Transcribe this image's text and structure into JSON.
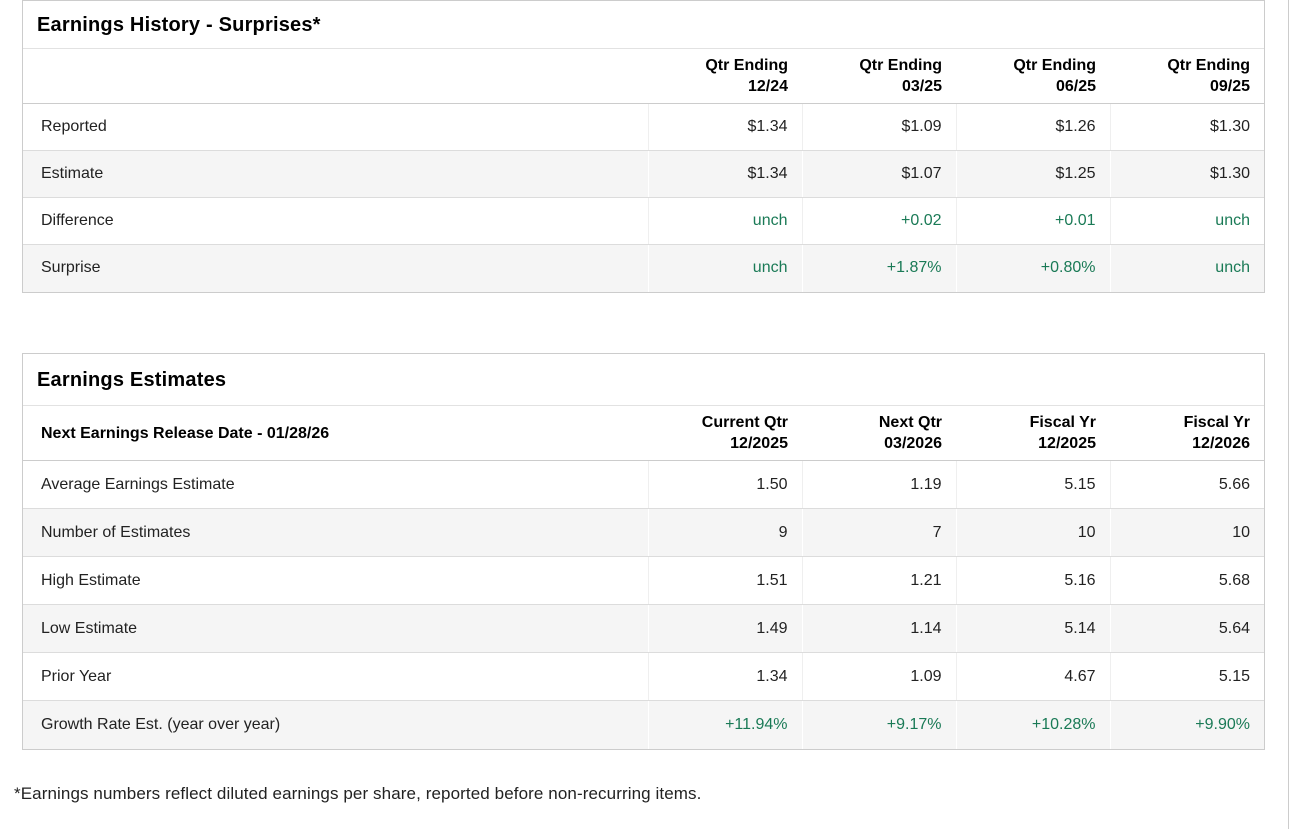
{
  "page": {
    "footnote": "*Earnings numbers reflect diluted earnings per share, reported before non-recurring items."
  },
  "colors": {
    "positive_value": "#1a7a56",
    "stripe_row": "#f5f5f5",
    "border": "#cccccc"
  },
  "earnings_history": {
    "title": "Earnings History - Surprises*",
    "columns": [
      {
        "line1": "Qtr Ending",
        "line2": "12/24"
      },
      {
        "line1": "Qtr Ending",
        "line2": "03/25"
      },
      {
        "line1": "Qtr Ending",
        "line2": "06/25"
      },
      {
        "line1": "Qtr Ending",
        "line2": "09/25"
      }
    ],
    "rows": [
      {
        "label": "Reported",
        "type": "normal",
        "values": [
          "$1.34",
          "$1.09",
          "$1.26",
          "$1.30"
        ]
      },
      {
        "label": "Estimate",
        "type": "normal",
        "values": [
          "$1.34",
          "$1.07",
          "$1.25",
          "$1.30"
        ]
      },
      {
        "label": "Difference",
        "type": "positive",
        "values": [
          "unch",
          "+0.02",
          "+0.01",
          "unch"
        ]
      },
      {
        "label": "Surprise",
        "type": "positive",
        "values": [
          "unch",
          "+1.87%",
          "+0.80%",
          "unch"
        ]
      }
    ]
  },
  "earnings_estimates": {
    "title": "Earnings Estimates",
    "release_date_label": "Next Earnings Release Date - 01/28/26",
    "columns": [
      {
        "line1": "Current Qtr",
        "line2": "12/2025"
      },
      {
        "line1": "Next Qtr",
        "line2": "03/2026"
      },
      {
        "line1": "Fiscal Yr",
        "line2": "12/2025"
      },
      {
        "line1": "Fiscal Yr",
        "line2": "12/2026"
      }
    ],
    "rows": [
      {
        "label": "Average Earnings Estimate",
        "type": "normal",
        "values": [
          "1.50",
          "1.19",
          "5.15",
          "5.66"
        ]
      },
      {
        "label": "Number of Estimates",
        "type": "normal",
        "values": [
          "9",
          "7",
          "10",
          "10"
        ]
      },
      {
        "label": "High Estimate",
        "type": "normal",
        "values": [
          "1.51",
          "1.21",
          "5.16",
          "5.68"
        ]
      },
      {
        "label": "Low Estimate",
        "type": "normal",
        "values": [
          "1.49",
          "1.14",
          "5.14",
          "5.64"
        ]
      },
      {
        "label": "Prior Year",
        "type": "normal",
        "values": [
          "1.34",
          "1.09",
          "4.67",
          "5.15"
        ]
      },
      {
        "label": "Growth Rate Est. (year over year)",
        "type": "positive",
        "values": [
          "+11.94%",
          "+9.17%",
          "+10.28%",
          "+9.90%"
        ]
      }
    ]
  }
}
